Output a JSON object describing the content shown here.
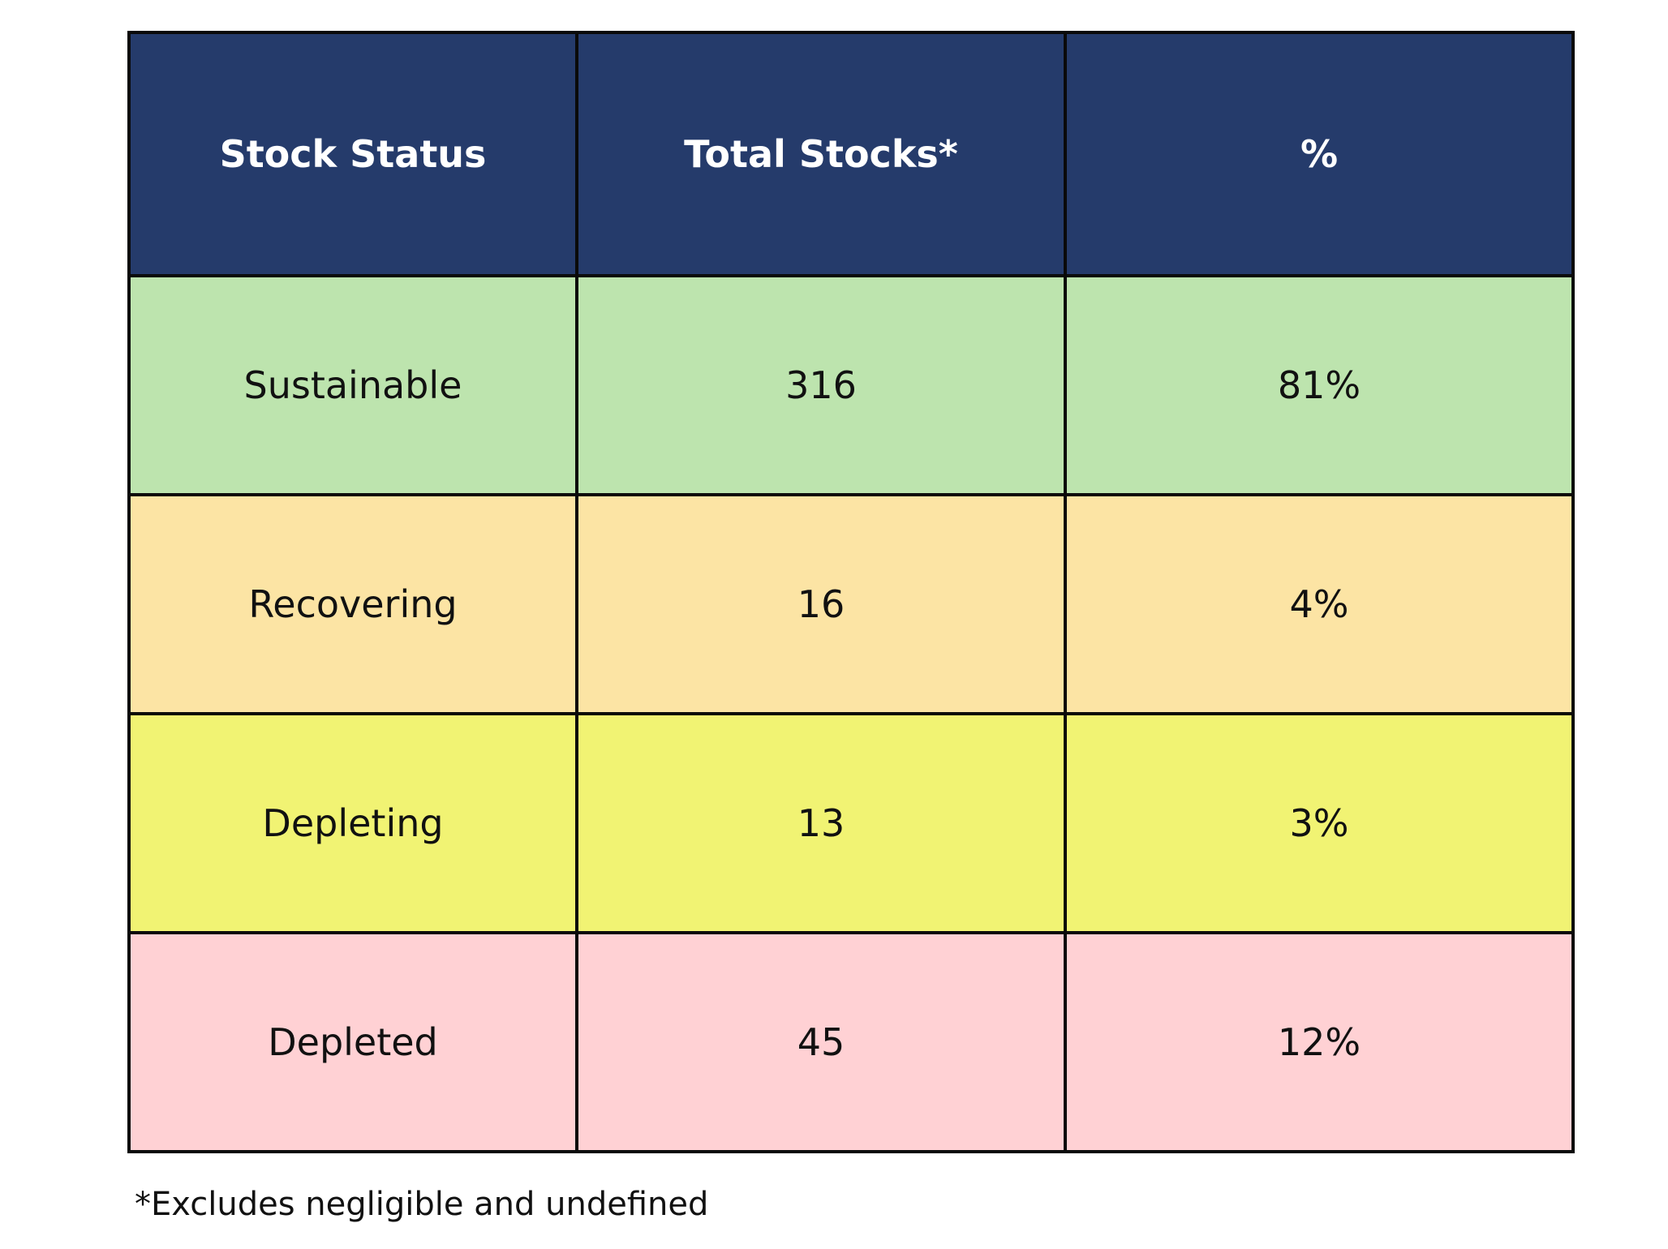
{
  "chart_data": {
    "type": "table",
    "columns": [
      "Stock Status",
      "Total Stocks*",
      "%"
    ],
    "rows": [
      {
        "status": "Sustainable",
        "total": "316",
        "percent": "81%",
        "color": "#bde4ae"
      },
      {
        "status": "Recovering",
        "total": "16",
        "percent": "4%",
        "color": "#fce4a4"
      },
      {
        "status": "Depleting",
        "total": "13",
        "percent": "3%",
        "color": "#f1f373"
      },
      {
        "status": "Depleted",
        "total": "45",
        "percent": "12%",
        "color": "#ffd1d4"
      }
    ],
    "header_color": "#253b6b",
    "footnote": "*Excludes negligible and undefined"
  }
}
